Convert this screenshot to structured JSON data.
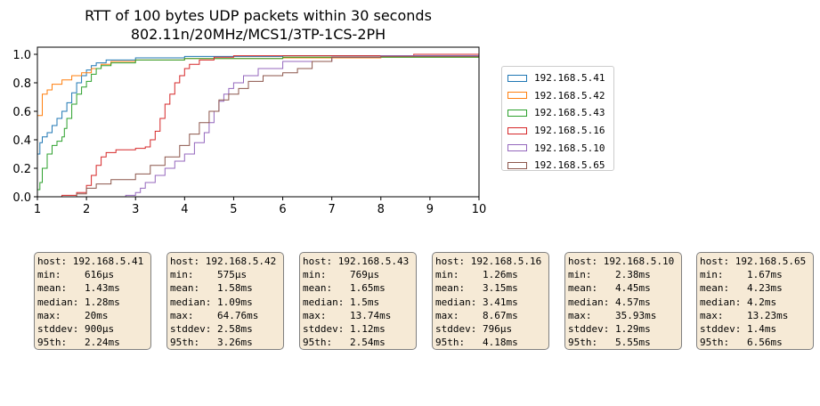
{
  "chart_data": {
    "type": "line",
    "title": "RTT of 100 bytes UDP packets within 30 seconds",
    "subtitle": "802.11n/20MHz/MCS1/3TP-1CS-2PH",
    "xlim": [
      1,
      10
    ],
    "ylim": [
      0,
      1.05
    ],
    "xticks": [
      "1",
      "2",
      "3",
      "4",
      "5",
      "6",
      "7",
      "8",
      "9",
      "10"
    ],
    "yticks": [
      "0.0",
      "0.2",
      "0.4",
      "0.6",
      "0.8",
      "1.0"
    ],
    "grid": false,
    "legend_position": "right",
    "series": [
      {
        "name": "192.168.5.41",
        "color": "#1f77b4",
        "points": [
          [
            1.0,
            0.0
          ],
          [
            1.0,
            0.3
          ],
          [
            1.05,
            0.38
          ],
          [
            1.1,
            0.42
          ],
          [
            1.2,
            0.45
          ],
          [
            1.3,
            0.5
          ],
          [
            1.4,
            0.55
          ],
          [
            1.5,
            0.6
          ],
          [
            1.6,
            0.66
          ],
          [
            1.7,
            0.73
          ],
          [
            1.8,
            0.8
          ],
          [
            1.9,
            0.85
          ],
          [
            2.0,
            0.89
          ],
          [
            2.1,
            0.92
          ],
          [
            2.2,
            0.94
          ],
          [
            2.4,
            0.96
          ],
          [
            3.0,
            0.975
          ],
          [
            4.0,
            0.985
          ],
          [
            6.0,
            0.99
          ],
          [
            10.0,
            0.99
          ]
        ]
      },
      {
        "name": "192.168.5.42",
        "color": "#ff7f0e",
        "points": [
          [
            1.0,
            0.0
          ],
          [
            1.0,
            0.57
          ],
          [
            1.1,
            0.72
          ],
          [
            1.2,
            0.75
          ],
          [
            1.3,
            0.79
          ],
          [
            1.5,
            0.82
          ],
          [
            1.7,
            0.85
          ],
          [
            1.9,
            0.87
          ],
          [
            2.1,
            0.9
          ],
          [
            2.3,
            0.93
          ],
          [
            2.5,
            0.95
          ],
          [
            3.0,
            0.96
          ],
          [
            4.0,
            0.97
          ],
          [
            6.0,
            0.975
          ],
          [
            8.0,
            0.98
          ],
          [
            10.0,
            0.98
          ]
        ]
      },
      {
        "name": "192.168.5.43",
        "color": "#2ca02c",
        "points": [
          [
            1.0,
            0.0
          ],
          [
            1.0,
            0.05
          ],
          [
            1.05,
            0.1
          ],
          [
            1.1,
            0.2
          ],
          [
            1.2,
            0.3
          ],
          [
            1.3,
            0.36
          ],
          [
            1.4,
            0.39
          ],
          [
            1.5,
            0.42
          ],
          [
            1.55,
            0.48
          ],
          [
            1.6,
            0.55
          ],
          [
            1.7,
            0.65
          ],
          [
            1.8,
            0.72
          ],
          [
            1.9,
            0.77
          ],
          [
            2.0,
            0.81
          ],
          [
            2.1,
            0.86
          ],
          [
            2.2,
            0.9
          ],
          [
            2.3,
            0.92
          ],
          [
            2.5,
            0.94
          ],
          [
            3.0,
            0.96
          ],
          [
            4.0,
            0.97
          ],
          [
            6.0,
            0.98
          ],
          [
            10.0,
            0.98
          ]
        ]
      },
      {
        "name": "192.168.5.16",
        "color": "#d62728",
        "points": [
          [
            1.26,
            0.0
          ],
          [
            1.5,
            0.01
          ],
          [
            1.8,
            0.03
          ],
          [
            2.0,
            0.08
          ],
          [
            2.1,
            0.15
          ],
          [
            2.2,
            0.22
          ],
          [
            2.3,
            0.28
          ],
          [
            2.4,
            0.31
          ],
          [
            2.6,
            0.33
          ],
          [
            3.0,
            0.34
          ],
          [
            3.2,
            0.35
          ],
          [
            3.3,
            0.4
          ],
          [
            3.4,
            0.46
          ],
          [
            3.5,
            0.55
          ],
          [
            3.6,
            0.65
          ],
          [
            3.7,
            0.72
          ],
          [
            3.8,
            0.8
          ],
          [
            3.9,
            0.85
          ],
          [
            4.0,
            0.9
          ],
          [
            4.1,
            0.93
          ],
          [
            4.3,
            0.96
          ],
          [
            4.6,
            0.98
          ],
          [
            5.0,
            0.99
          ],
          [
            6.0,
            0.99
          ],
          [
            8.67,
            0.99
          ],
          [
            8.67,
            1.0
          ],
          [
            10.0,
            1.0
          ]
        ]
      },
      {
        "name": "192.168.5.10",
        "color": "#9467bd",
        "points": [
          [
            2.38,
            0.0
          ],
          [
            2.8,
            0.01
          ],
          [
            3.0,
            0.03
          ],
          [
            3.1,
            0.06
          ],
          [
            3.2,
            0.1
          ],
          [
            3.4,
            0.15
          ],
          [
            3.6,
            0.2
          ],
          [
            3.8,
            0.25
          ],
          [
            4.0,
            0.3
          ],
          [
            4.2,
            0.38
          ],
          [
            4.4,
            0.45
          ],
          [
            4.5,
            0.52
          ],
          [
            4.6,
            0.6
          ],
          [
            4.7,
            0.67
          ],
          [
            4.8,
            0.72
          ],
          [
            4.9,
            0.76
          ],
          [
            5.0,
            0.8
          ],
          [
            5.2,
            0.85
          ],
          [
            5.5,
            0.9
          ],
          [
            6.0,
            0.95
          ],
          [
            7.0,
            0.98
          ],
          [
            8.0,
            0.99
          ],
          [
            10.0,
            0.995
          ]
        ]
      },
      {
        "name": "192.168.5.65",
        "color": "#8c564b",
        "points": [
          [
            1.67,
            0.0
          ],
          [
            1.8,
            0.02
          ],
          [
            2.0,
            0.06
          ],
          [
            2.2,
            0.09
          ],
          [
            2.5,
            0.12
          ],
          [
            3.0,
            0.16
          ],
          [
            3.3,
            0.22
          ],
          [
            3.6,
            0.28
          ],
          [
            3.9,
            0.36
          ],
          [
            4.1,
            0.44
          ],
          [
            4.3,
            0.52
          ],
          [
            4.5,
            0.6
          ],
          [
            4.7,
            0.68
          ],
          [
            4.9,
            0.72
          ],
          [
            5.1,
            0.76
          ],
          [
            5.3,
            0.81
          ],
          [
            5.6,
            0.85
          ],
          [
            6.0,
            0.87
          ],
          [
            6.3,
            0.9
          ],
          [
            6.6,
            0.95
          ],
          [
            7.0,
            0.98
          ],
          [
            8.0,
            0.985
          ],
          [
            10.0,
            0.99
          ]
        ]
      }
    ]
  },
  "stats": [
    {
      "host": "192.168.5.41",
      "min": "616µs",
      "mean": "1.43ms",
      "median": "1.28ms",
      "max": "20ms",
      "stddev": "900µs",
      "p95": "2.24ms"
    },
    {
      "host": "192.168.5.42",
      "min": "575µs",
      "mean": "1.58ms",
      "median": "1.09ms",
      "max": "64.76ms",
      "stddev": "2.58ms",
      "p95": "3.26ms"
    },
    {
      "host": "192.168.5.43",
      "min": "769µs",
      "mean": "1.65ms",
      "median": "1.5ms",
      "max": "13.74ms",
      "stddev": "1.12ms",
      "p95": "2.54ms"
    },
    {
      "host": "192.168.5.16",
      "min": "1.26ms",
      "mean": "3.15ms",
      "median": "3.41ms",
      "max": "8.67ms",
      "stddev": "796µs",
      "p95": "4.18ms"
    },
    {
      "host": "192.168.5.10",
      "min": "2.38ms",
      "mean": "4.45ms",
      "median": "4.57ms",
      "max": "35.93ms",
      "stddev": "1.29ms",
      "p95": "5.55ms"
    },
    {
      "host": "192.168.5.65",
      "min": "1.67ms",
      "mean": "4.23ms",
      "median": "4.2ms",
      "max": "13.23ms",
      "stddev": "1.4ms",
      "p95": "6.56ms"
    }
  ],
  "stat_labels": {
    "host": "host:",
    "min": "min:",
    "mean": "mean:",
    "median": "median:",
    "max": "max:",
    "stddev": "stddev:",
    "p95": "95th:"
  }
}
